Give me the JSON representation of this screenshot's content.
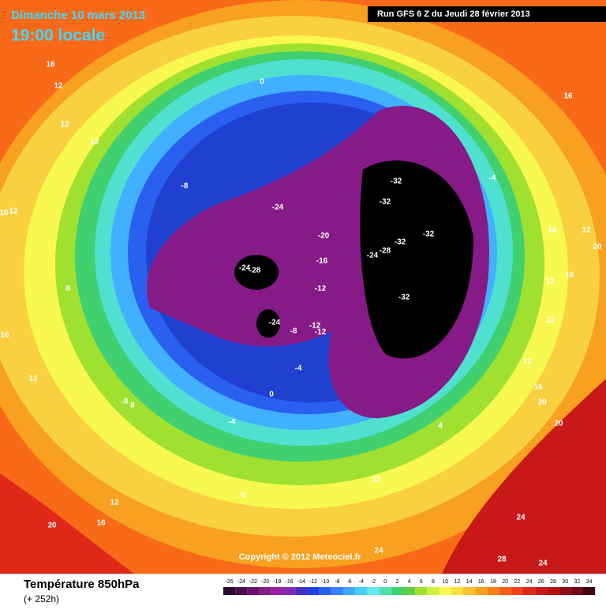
{
  "header": {
    "date": "Dimanche 10 mars 2013",
    "time": "19:00 locale",
    "run": "Run GFS 6 Z du Jeudi 28 février 2013"
  },
  "map": {
    "copyright": "Copyright © 2012 Meteociel.fr",
    "labels": [
      16,
      12,
      12,
      12,
      16,
      12,
      12,
      0,
      16,
      -8,
      -4,
      -24,
      -32,
      -32,
      -20,
      -32,
      -32,
      -28,
      -24,
      -16,
      -24,
      -28,
      -12,
      -32,
      16,
      12,
      16,
      20,
      12,
      12,
      12,
      -24,
      -8,
      -12,
      -12,
      -4,
      0,
      16,
      20,
      20,
      -8,
      8,
      4,
      -4,
      12,
      0,
      12,
      16,
      20,
      24,
      24,
      28,
      24,
      16,
      8
    ]
  },
  "footer": {
    "title": "Température 850hPa",
    "lead": "(+ 252h)"
  },
  "colorbar": {
    "ticks": [
      -26,
      -24,
      -22,
      -20,
      -18,
      -16,
      -14,
      -12,
      -10,
      -8,
      -6,
      -4,
      -2,
      0,
      2,
      4,
      6,
      8,
      10,
      12,
      14,
      16,
      18,
      20,
      22,
      24,
      26,
      28,
      30,
      32,
      34
    ],
    "colors": [
      "#2a0a2a",
      "#4a0f4a",
      "#6a126a",
      "#861a86",
      "#9a1fa0",
      "#7a2db0",
      "#4630c0",
      "#2040e0",
      "#2a60f0",
      "#3a80ff",
      "#40a8ff",
      "#40d0f8",
      "#60e8f0",
      "#50e0b0",
      "#40d070",
      "#60d040",
      "#a0e030",
      "#d0f040",
      "#f8f850",
      "#f8e040",
      "#f8c030",
      "#f8a020",
      "#f88018",
      "#f86018",
      "#f04018",
      "#e02818",
      "#c81818",
      "#b01010",
      "#900c18",
      "#700818",
      "#400410"
    ]
  }
}
